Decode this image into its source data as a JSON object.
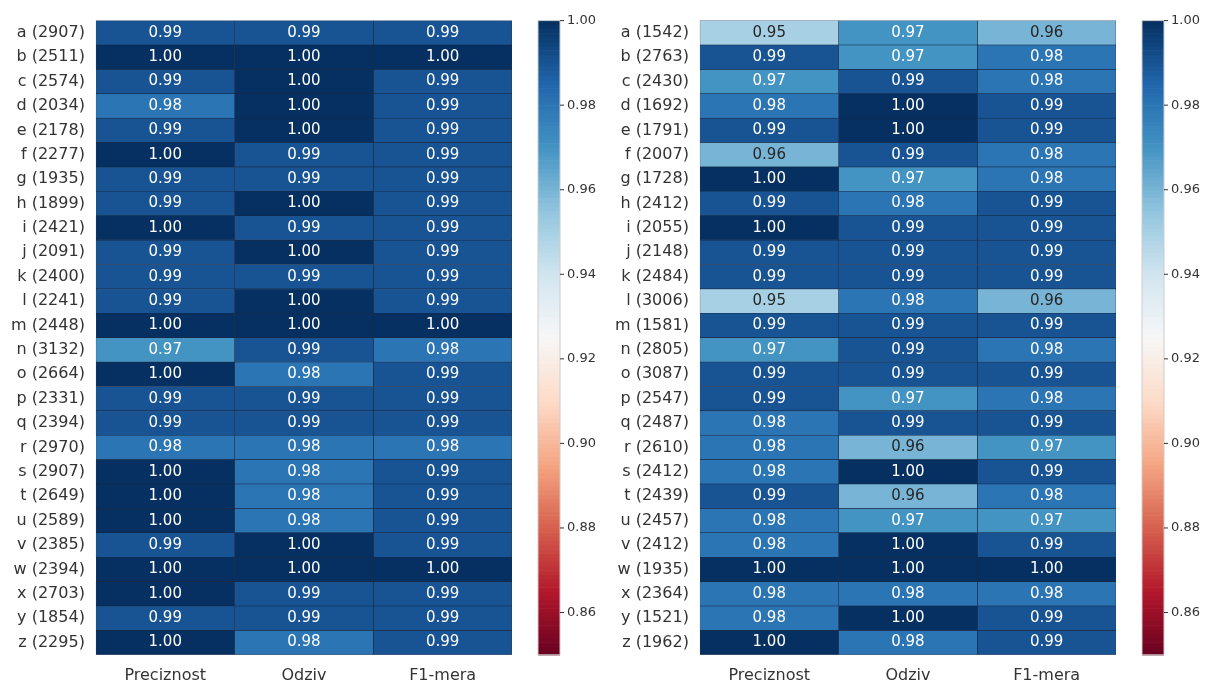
{
  "chart_data": [
    {
      "type": "heatmap",
      "categories": [
        "Preciznost",
        "Odziv",
        "F1-mera"
      ],
      "y_categories": [
        "a (2907)",
        "b (2511)",
        "c (2574)",
        "d (2034)",
        "e (2178)",
        "f (2277)",
        "g (1935)",
        "h (1899)",
        "i (2421)",
        "j (2091)",
        "k (2400)",
        "l (2241)",
        "m (2448)",
        "n (3132)",
        "o (2664)",
        "p (2331)",
        "q (2394)",
        "r (2970)",
        "s (2907)",
        "t (2649)",
        "u (2589)",
        "v (2385)",
        "w (2394)",
        "x (2703)",
        "y (1854)",
        "z (2295)"
      ],
      "cells": [
        [
          0.99,
          0.99,
          0.99
        ],
        [
          1.0,
          1.0,
          1.0
        ],
        [
          0.99,
          1.0,
          0.99
        ],
        [
          0.98,
          1.0,
          0.99
        ],
        [
          0.99,
          1.0,
          0.99
        ],
        [
          1.0,
          0.99,
          0.99
        ],
        [
          0.99,
          0.99,
          0.99
        ],
        [
          0.99,
          1.0,
          0.99
        ],
        [
          1.0,
          0.99,
          0.99
        ],
        [
          0.99,
          1.0,
          0.99
        ],
        [
          0.99,
          0.99,
          0.99
        ],
        [
          0.99,
          1.0,
          0.99
        ],
        [
          1.0,
          1.0,
          1.0
        ],
        [
          0.97,
          0.99,
          0.98
        ],
        [
          1.0,
          0.98,
          0.99
        ],
        [
          0.99,
          0.99,
          0.99
        ],
        [
          0.99,
          0.99,
          0.99
        ],
        [
          0.98,
          0.98,
          0.98
        ],
        [
          1.0,
          0.98,
          0.99
        ],
        [
          1.0,
          0.98,
          0.99
        ],
        [
          1.0,
          0.98,
          0.99
        ],
        [
          0.99,
          1.0,
          0.99
        ],
        [
          1.0,
          1.0,
          1.0
        ],
        [
          1.0,
          0.99,
          0.99
        ],
        [
          0.99,
          0.99,
          0.99
        ],
        [
          1.0,
          0.98,
          0.99
        ]
      ],
      "cell_labels": [
        [
          "0.99",
          "0.99",
          "0.99"
        ],
        [
          "1.00",
          "1.00",
          "1.00"
        ],
        [
          "0.99",
          "1.00",
          "0.99"
        ],
        [
          "0.98",
          "1.00",
          "0.99"
        ],
        [
          "0.99",
          "1.00",
          "0.99"
        ],
        [
          "1.00",
          "0.99",
          "0.99"
        ],
        [
          "0.99",
          "0.99",
          "0.99"
        ],
        [
          "0.99",
          "1.00",
          "0.99"
        ],
        [
          "1.00",
          "0.99",
          "0.99"
        ],
        [
          "0.99",
          "1.00",
          "0.99"
        ],
        [
          "0.99",
          "0.99",
          "0.99"
        ],
        [
          "0.99",
          "1.00",
          "0.99"
        ],
        [
          "1.00",
          "1.00",
          "1.00"
        ],
        [
          "0.97",
          "0.99",
          "0.98"
        ],
        [
          "1.00",
          "0.98",
          "0.99"
        ],
        [
          "0.99",
          "0.99",
          "0.99"
        ],
        [
          "0.99",
          "0.99",
          "0.99"
        ],
        [
          "0.98",
          "0.98",
          "0.98"
        ],
        [
          "1.00",
          "0.98",
          "0.99"
        ],
        [
          "1.00",
          "0.98",
          "0.99"
        ],
        [
          "1.00",
          "0.98",
          "0.99"
        ],
        [
          "0.99",
          "1.00",
          "0.99"
        ],
        [
          "1.00",
          "1.00",
          "1.00"
        ],
        [
          "1.00",
          "0.99",
          "0.99"
        ],
        [
          "0.99",
          "0.99",
          "0.99"
        ],
        [
          "1.00",
          "0.98",
          "0.99"
        ]
      ],
      "clim": [
        0.85,
        1.0
      ],
      "cticks": [
        {
          "value": 0.86,
          "label": "0.86"
        },
        {
          "value": 0.88,
          "label": "0.88"
        },
        {
          "value": 0.9,
          "label": "0.90"
        },
        {
          "value": 0.92,
          "label": "0.92"
        },
        {
          "value": 0.94,
          "label": "0.94"
        },
        {
          "value": 0.96,
          "label": "0.96"
        },
        {
          "value": 0.98,
          "label": "0.98"
        },
        {
          "value": 1.0,
          "label": "1.00"
        }
      ]
    },
    {
      "type": "heatmap",
      "categories": [
        "Preciznost",
        "Odziv",
        "F1-mera"
      ],
      "y_categories": [
        "a (1542)",
        "b (2763)",
        "c (2430)",
        "d (1692)",
        "e (1791)",
        "f (2007)",
        "g (1728)",
        "h (2412)",
        "i (2055)",
        "j (2148)",
        "k (2484)",
        "l (3006)",
        "m (1581)",
        "n (2805)",
        "o (3087)",
        "p (2547)",
        "q (2487)",
        "r (2610)",
        "s (2412)",
        "t (2439)",
        "u (2457)",
        "v (2412)",
        "w (1935)",
        "x (2364)",
        "y (1521)",
        "z (1962)"
      ],
      "cells": [
        [
          0.95,
          0.97,
          0.96
        ],
        [
          0.99,
          0.97,
          0.98
        ],
        [
          0.97,
          0.99,
          0.98
        ],
        [
          0.98,
          1.0,
          0.99
        ],
        [
          0.99,
          1.0,
          0.99
        ],
        [
          0.96,
          0.99,
          0.98
        ],
        [
          1.0,
          0.97,
          0.98
        ],
        [
          0.99,
          0.98,
          0.99
        ],
        [
          1.0,
          0.99,
          0.99
        ],
        [
          0.99,
          0.99,
          0.99
        ],
        [
          0.99,
          0.99,
          0.99
        ],
        [
          0.95,
          0.98,
          0.96
        ],
        [
          0.99,
          0.99,
          0.99
        ],
        [
          0.97,
          0.99,
          0.98
        ],
        [
          0.99,
          0.99,
          0.99
        ],
        [
          0.99,
          0.97,
          0.98
        ],
        [
          0.98,
          0.99,
          0.99
        ],
        [
          0.98,
          0.96,
          0.97
        ],
        [
          0.98,
          1.0,
          0.99
        ],
        [
          0.99,
          0.96,
          0.98
        ],
        [
          0.98,
          0.97,
          0.97
        ],
        [
          0.98,
          1.0,
          0.99
        ],
        [
          1.0,
          1.0,
          1.0
        ],
        [
          0.98,
          0.98,
          0.98
        ],
        [
          0.98,
          1.0,
          0.99
        ],
        [
          1.0,
          0.98,
          0.99
        ]
      ],
      "cell_labels": [
        [
          "0.95",
          "0.97",
          "0.96"
        ],
        [
          "0.99",
          "0.97",
          "0.98"
        ],
        [
          "0.97",
          "0.99",
          "0.98"
        ],
        [
          "0.98",
          "1.00",
          "0.99"
        ],
        [
          "0.99",
          "1.00",
          "0.99"
        ],
        [
          "0.96",
          "0.99",
          "0.98"
        ],
        [
          "1.00",
          "0.97",
          "0.98"
        ],
        [
          "0.99",
          "0.98",
          "0.99"
        ],
        [
          "1.00",
          "0.99",
          "0.99"
        ],
        [
          "0.99",
          "0.99",
          "0.99"
        ],
        [
          "0.99",
          "0.99",
          "0.99"
        ],
        [
          "0.95",
          "0.98",
          "0.96"
        ],
        [
          "0.99",
          "0.99",
          "0.99"
        ],
        [
          "0.97",
          "0.99",
          "0.98"
        ],
        [
          "0.99",
          "0.99",
          "0.99"
        ],
        [
          "0.99",
          "0.97",
          "0.98"
        ],
        [
          "0.98",
          "0.99",
          "0.99"
        ],
        [
          "0.98",
          "0.96",
          "0.97"
        ],
        [
          "0.98",
          "1.00",
          "0.99"
        ],
        [
          "0.99",
          "0.96",
          "0.98"
        ],
        [
          "0.98",
          "0.97",
          "0.97"
        ],
        [
          "0.98",
          "1.00",
          "0.99"
        ],
        [
          "1.00",
          "1.00",
          "1.00"
        ],
        [
          "0.98",
          "0.98",
          "0.98"
        ],
        [
          "0.98",
          "1.00",
          "0.99"
        ],
        [
          "1.00",
          "0.98",
          "0.99"
        ]
      ],
      "clim": [
        0.85,
        1.0
      ],
      "cticks": [
        {
          "value": 0.86,
          "label": "0.86"
        },
        {
          "value": 0.88,
          "label": "0.88"
        },
        {
          "value": 0.9,
          "label": "0.90"
        },
        {
          "value": 0.92,
          "label": "0.92"
        },
        {
          "value": 0.94,
          "label": "0.94"
        },
        {
          "value": 0.96,
          "label": "0.96"
        },
        {
          "value": 0.98,
          "label": "0.98"
        },
        {
          "value": 1.0,
          "label": "1.00"
        }
      ]
    }
  ]
}
